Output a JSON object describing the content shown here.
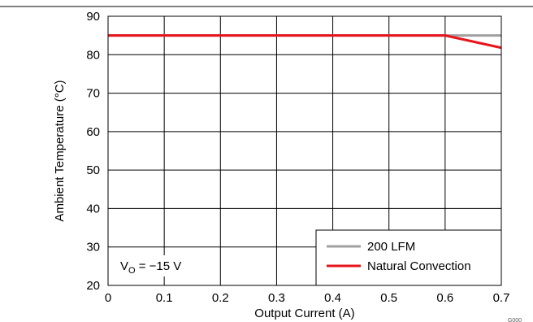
{
  "chart_data": {
    "type": "line",
    "title": "",
    "xlabel": "Output Current (A)",
    "ylabel": "Ambient Temperature (°C)",
    "xlim": [
      0,
      0.7
    ],
    "ylim": [
      20,
      90
    ],
    "xticks": [
      0,
      0.1,
      0.2,
      0.3,
      0.4,
      0.5,
      0.6,
      0.7
    ],
    "yticks": [
      20,
      30,
      40,
      50,
      60,
      70,
      80,
      90
    ],
    "grid": true,
    "legend_position": "bottom-right",
    "annotation": {
      "main": "V",
      "sub": "O",
      "rest": " = −15 V"
    },
    "figure_id": "G000",
    "series": [
      {
        "name": "200 LFM",
        "color": "#a0a0a0",
        "x": [
          0,
          0.6,
          0.7
        ],
        "y": [
          85,
          85,
          85
        ]
      },
      {
        "name": "Natural Convection",
        "color": "#e8141c",
        "x": [
          0,
          0.6,
          0.7
        ],
        "y": [
          85,
          85,
          81.8
        ]
      }
    ]
  }
}
